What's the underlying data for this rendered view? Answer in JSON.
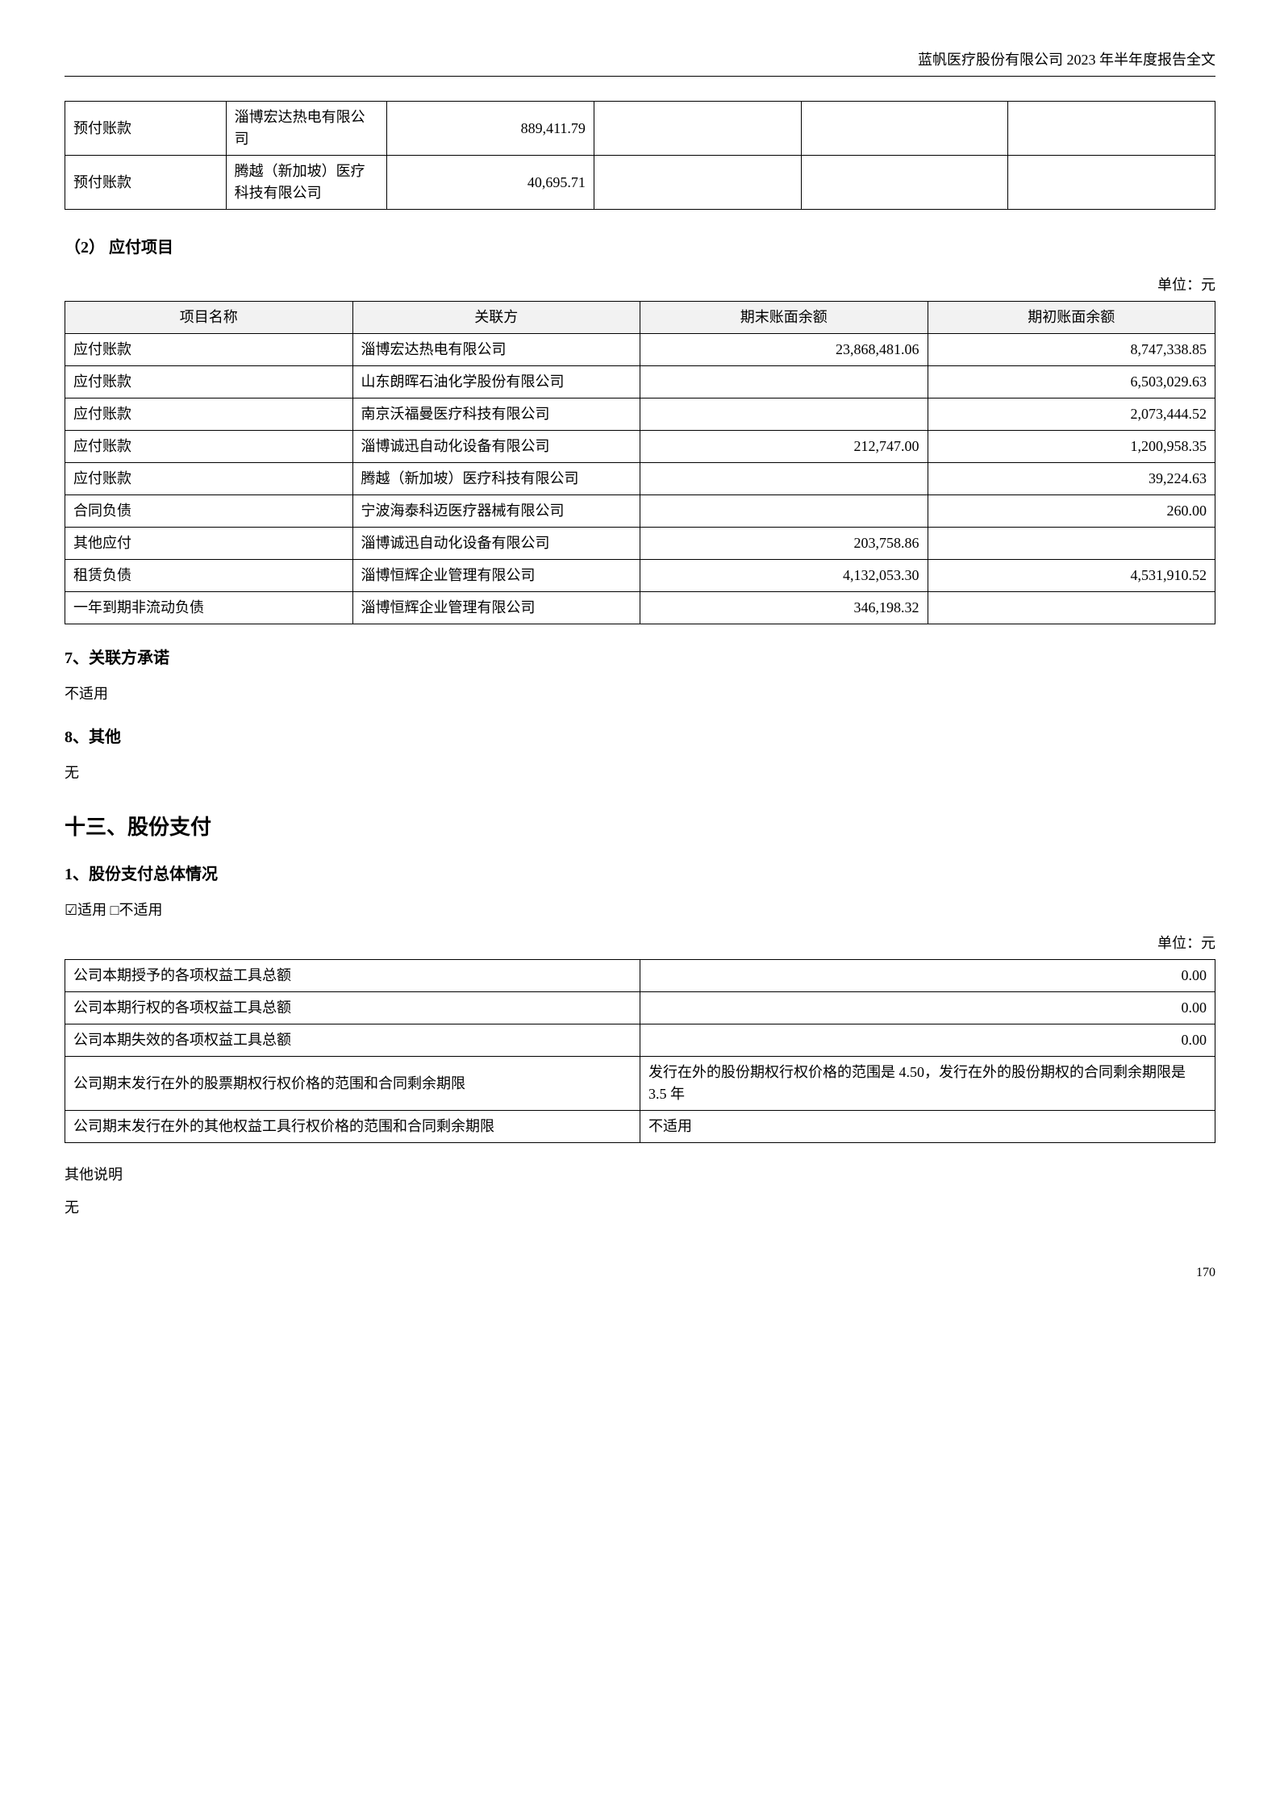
{
  "header": {
    "title": "蓝帆医疗股份有限公司 2023 年半年度报告全文"
  },
  "table1": {
    "rows": [
      {
        "c1": "预付账款",
        "c2": "淄博宏达热电有限公司",
        "c3": "889,411.79",
        "c4": "",
        "c5": "",
        "c6": ""
      },
      {
        "c1": "预付账款",
        "c2": "腾越（新加坡）医疗科技有限公司",
        "c3": "40,695.71",
        "c4": "",
        "c5": "",
        "c6": ""
      }
    ]
  },
  "section2": {
    "title": "（2） 应付项目",
    "unit": "单位：元"
  },
  "table2": {
    "headers": {
      "c1": "项目名称",
      "c2": "关联方",
      "c3": "期末账面余额",
      "c4": "期初账面余额"
    },
    "rows": [
      {
        "c1": "应付账款",
        "c2": "淄博宏达热电有限公司",
        "c3": "23,868,481.06",
        "c4": "8,747,338.85"
      },
      {
        "c1": "应付账款",
        "c2": "山东朗晖石油化学股份有限公司",
        "c3": "",
        "c4": "6,503,029.63"
      },
      {
        "c1": "应付账款",
        "c2": "南京沃福曼医疗科技有限公司",
        "c3": "",
        "c4": "2,073,444.52"
      },
      {
        "c1": "应付账款",
        "c2": "淄博诚迅自动化设备有限公司",
        "c3": "212,747.00",
        "c4": "1,200,958.35"
      },
      {
        "c1": "应付账款",
        "c2": "腾越（新加坡）医疗科技有限公司",
        "c3": "",
        "c4": "39,224.63"
      },
      {
        "c1": "合同负债",
        "c2": "宁波海泰科迈医疗器械有限公司",
        "c3": "",
        "c4": "260.00"
      },
      {
        "c1": "其他应付",
        "c2": "淄博诚迅自动化设备有限公司",
        "c3": "203,758.86",
        "c4": ""
      },
      {
        "c1": "租赁负债",
        "c2": "淄博恒辉企业管理有限公司",
        "c3": "4,132,053.30",
        "c4": "4,531,910.52"
      },
      {
        "c1": "一年到期非流动负债",
        "c2": "淄博恒辉企业管理有限公司",
        "c3": "346,198.32",
        "c4": ""
      }
    ]
  },
  "section7": {
    "title": "7、关联方承诺",
    "text": "不适用"
  },
  "section8": {
    "title": "8、其他",
    "text": "无"
  },
  "section13": {
    "title": "十三、股份支付"
  },
  "section13_1": {
    "title": "1、股份支付总体情况",
    "applicable": "☑适用 □不适用",
    "unit": "单位：元"
  },
  "table3": {
    "rows": [
      {
        "c1": "公司本期授予的各项权益工具总额",
        "c2": "0.00",
        "c2_align": "right"
      },
      {
        "c1": "公司本期行权的各项权益工具总额",
        "c2": "0.00",
        "c2_align": "right"
      },
      {
        "c1": "公司本期失效的各项权益工具总额",
        "c2": "0.00",
        "c2_align": "right"
      },
      {
        "c1": "公司期末发行在外的股票期权行权价格的范围和合同剩余期限",
        "c2": "发行在外的股份期权行权价格的范围是 4.50，发行在外的股份期权的合同剩余期限是 3.5 年",
        "c2_align": "left"
      },
      {
        "c1": "公司期末发行在外的其他权益工具行权价格的范围和合同剩余期限",
        "c2": "不适用",
        "c2_align": "left"
      }
    ]
  },
  "other_notes": {
    "label": "其他说明",
    "text": "无"
  },
  "page_number": "170"
}
